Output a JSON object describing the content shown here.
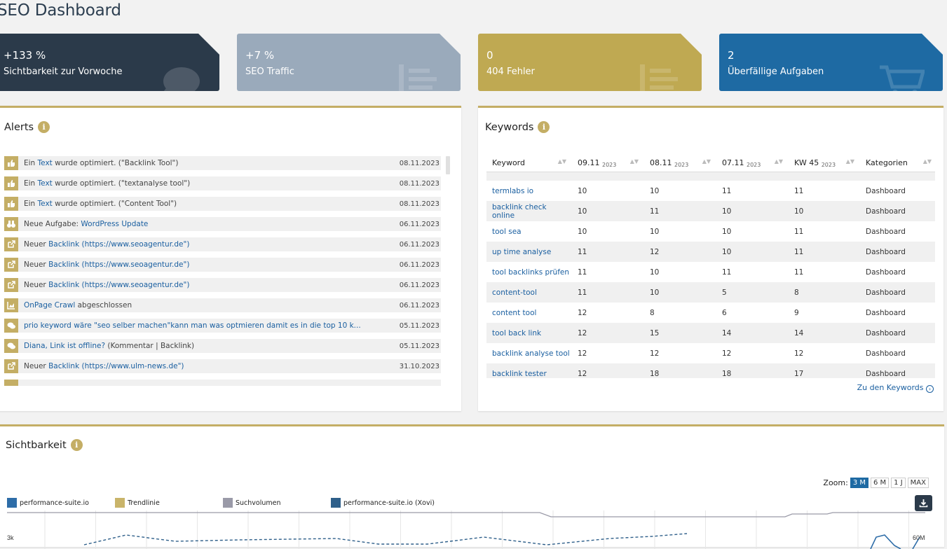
{
  "page": {
    "title": "SEO Dashboard"
  },
  "stats": [
    {
      "value": "+133 %",
      "label": "Sichtbarkeit zur Vorwoche",
      "icon": "comment-icon",
      "color": "#2b3a4a"
    },
    {
      "value": "+7 %",
      "label": "SEO Traffic",
      "icon": "list-icon",
      "color": "#9aaabb"
    },
    {
      "value": "0",
      "label": "404 Fehler",
      "icon": "list-icon",
      "color": "#bfa952"
    },
    {
      "value": "2",
      "label": "Überfällige Aufgaben",
      "icon": "cart-icon",
      "color": "#1e6aa3"
    }
  ],
  "alerts": {
    "title": "Alerts",
    "info": "i",
    "items": [
      {
        "icon": "thumbs-up-icon",
        "pre": "Ein ",
        "link": "Text",
        "post": " wurde optimiert. (\"Backlink Tool\")",
        "date": "08.11.2023"
      },
      {
        "icon": "thumbs-up-icon",
        "pre": "Ein ",
        "link": "Text",
        "post": " wurde optimiert. (\"textanalyse tool\")",
        "date": "08.11.2023"
      },
      {
        "icon": "thumbs-up-icon",
        "pre": "Ein ",
        "link": "Text",
        "post": " wurde optimiert. (\"Content Tool\")",
        "date": "08.11.2023"
      },
      {
        "icon": "binoculars-icon",
        "pre": "Neue Aufgabe: ",
        "link": "WordPress Update",
        "post": "",
        "date": "06.11.2023"
      },
      {
        "icon": "external-link-icon",
        "pre": "Neuer ",
        "link": "Backlink (https://www.seoagentur.de\")",
        "post": "",
        "date": "06.11.2023"
      },
      {
        "icon": "external-link-icon",
        "pre": "Neuer ",
        "link": "Backlink (https://www.seoagentur.de\")",
        "post": "",
        "date": "06.11.2023"
      },
      {
        "icon": "external-link-icon",
        "pre": "Neuer ",
        "link": "Backlink (https://www.seoagentur.de\")",
        "post": "",
        "date": "06.11.2023"
      },
      {
        "icon": "chart-icon",
        "pre": "",
        "link": "OnPage Crawl",
        "post": " abgeschlossen",
        "date": "06.11.2023"
      },
      {
        "icon": "comments-icon",
        "pre": "",
        "link": "prio keyword wäre \"seo selber machen\"kann man was optmieren damit es in die top 10 k...",
        "post": "",
        "date": "05.11.2023"
      },
      {
        "icon": "comments-icon",
        "pre": "",
        "link": "Diana, Link ist offline?",
        "post": " (Kommentar | Backlink)",
        "date": "05.11.2023"
      },
      {
        "icon": "external-link-icon",
        "pre": "Neuer ",
        "link": "Backlink (https://www.ulm-news.de\")",
        "post": "",
        "date": "31.10.2023"
      }
    ]
  },
  "keywords": {
    "title": "Keywords",
    "info": "i",
    "columns": [
      {
        "main": "Keyword",
        "year": ""
      },
      {
        "main": "09.11",
        "year": "2023"
      },
      {
        "main": "08.11",
        "year": "2023"
      },
      {
        "main": "07.11",
        "year": "2023"
      },
      {
        "main": "KW 45",
        "year": "2023"
      },
      {
        "main": "Kategorien",
        "year": ""
      }
    ],
    "rows": [
      [
        "termlabs io",
        "10",
        "10",
        "11",
        "11",
        "Dashboard"
      ],
      [
        "backlink check online",
        "10",
        "11",
        "10",
        "10",
        "Dashboard"
      ],
      [
        "tool sea",
        "10",
        "10",
        "10",
        "11",
        "Dashboard"
      ],
      [
        "up time analyse",
        "11",
        "12",
        "10",
        "11",
        "Dashboard"
      ],
      [
        "tool backlinks prüfen",
        "11",
        "10",
        "11",
        "11",
        "Dashboard"
      ],
      [
        "content-tool",
        "11",
        "10",
        "5",
        "8",
        "Dashboard"
      ],
      [
        "content tool",
        "12",
        "8",
        "6",
        "9",
        "Dashboard"
      ],
      [
        "tool back link",
        "12",
        "15",
        "14",
        "14",
        "Dashboard"
      ],
      [
        "backlink analyse tool",
        "12",
        "12",
        "12",
        "12",
        "Dashboard"
      ],
      [
        "backlink tester",
        "12",
        "18",
        "18",
        "17",
        "Dashboard"
      ]
    ],
    "more_link": "Zu den Keywords"
  },
  "visibility": {
    "title": "Sichtbarkeit",
    "info": "i",
    "zoom_label": "Zoom:",
    "zoom_options": [
      "3 M",
      "6 M",
      "1 J",
      "MAX"
    ],
    "zoom_selected": "3 M",
    "legend": [
      {
        "name": "performance-suite.io",
        "color": "#2e6da8"
      },
      {
        "name": "Trendlinie",
        "color": "#c9b46a"
      },
      {
        "name": "Suchvolumen",
        "color": "#9a9aa8"
      },
      {
        "name": "performance-suite.io (Xovi)",
        "color": "#2e5f8a"
      }
    ],
    "y_left_label": "3k",
    "y_right_label": "60M"
  }
}
